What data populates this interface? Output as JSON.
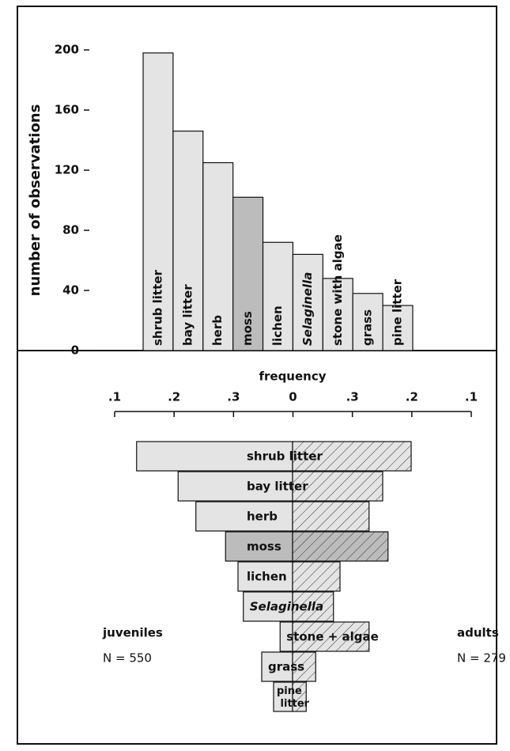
{
  "chart_data": [
    {
      "type": "bar",
      "ylabel": "number of observations",
      "categories": [
        "shrub litter",
        "bay litter",
        "herb",
        "moss",
        "lichen",
        "Selaginella",
        "stone with algae",
        "grass",
        "pine litter"
      ],
      "values": [
        198,
        146,
        125,
        102,
        72,
        64,
        48,
        38,
        30
      ],
      "colors": [
        "#e4e4e4",
        "#e4e4e4",
        "#e4e4e4",
        "#bcbcbc",
        "#e4e4e4",
        "#e4e4e4",
        "#e4e4e4",
        "#e4e4e4",
        "#e4e4e4"
      ],
      "ylim": [
        0,
        229
      ],
      "yticks": [
        0,
        40,
        80,
        120,
        160,
        200
      ]
    },
    {
      "type": "butterfly",
      "xlabel": "frequency",
      "xtick_labels": [
        ".1",
        ".2",
        ".3",
        "0",
        ".3",
        ".2",
        ".1"
      ],
      "xlim": [
        -0.3,
        0.3
      ],
      "categories": [
        "shrub litter",
        "bay litter",
        "herb",
        "moss",
        "lichen",
        "Selaginella",
        "stone + algae",
        "grass",
        "pine litter"
      ],
      "series": [
        {
          "name": "juveniles",
          "n_label": "N = 550",
          "color": "#e4e4e4",
          "highlight": "#bcbcbc",
          "values": [
            0.263,
            0.193,
            0.163,
            0.113,
            0.092,
            0.083,
            0.021,
            0.052,
            0.032
          ]
        },
        {
          "name": "adults",
          "n_label": "N = 279",
          "color": "#e4e4e4",
          "highlight": "#bcbcbc",
          "values": [
            0.2,
            0.152,
            0.129,
            0.161,
            0.08,
            0.069,
            0.129,
            0.039,
            0.023
          ]
        }
      ],
      "highlight_index": 3
    }
  ]
}
